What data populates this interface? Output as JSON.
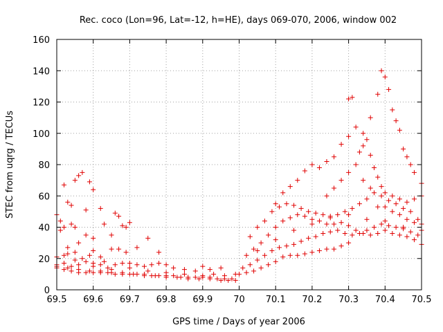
{
  "chart_data": {
    "type": "scatter",
    "title": "Rec. coco (Lon=96, Lat=-12, h=HE), days 069-070, 2006, window 002",
    "xlabel": "GPS time / Days of year 2006",
    "ylabel": "STEC from uqrg / TECUs",
    "xlim": [
      69.5,
      70.5
    ],
    "ylim": [
      0,
      160
    ],
    "xticks": [
      "69.5",
      "69.6",
      "69.7",
      "69.8",
      "69.9",
      "70",
      "70.1",
      "70.2",
      "70.3",
      "70.4",
      "70.5"
    ],
    "yticks": [
      "0",
      "20",
      "40",
      "60",
      "80",
      "100",
      "120",
      "140",
      "160"
    ],
    "grid": true,
    "marker": "+",
    "color": "#e00000",
    "series": [
      {
        "points": [
          [
            69.5,
            48
          ],
          [
            69.51,
            44
          ],
          [
            69.52,
            40
          ],
          [
            69.52,
            67
          ],
          [
            69.53,
            56
          ],
          [
            69.54,
            54
          ],
          [
            69.55,
            70
          ],
          [
            69.56,
            73
          ],
          [
            69.57,
            75
          ],
          [
            69.58,
            51
          ],
          [
            69.59,
            69
          ],
          [
            69.6,
            64
          ],
          [
            69.51,
            38
          ],
          [
            69.53,
            27
          ],
          [
            69.54,
            42
          ],
          [
            69.55,
            40
          ],
          [
            69.56,
            30
          ],
          [
            69.58,
            35
          ],
          [
            69.6,
            33
          ],
          [
            69.62,
            52
          ],
          [
            69.63,
            42
          ],
          [
            69.65,
            35
          ],
          [
            69.66,
            49
          ],
          [
            69.67,
            47
          ],
          [
            69.68,
            41
          ],
          [
            69.69,
            40
          ],
          [
            69.7,
            43
          ],
          [
            69.5,
            21
          ],
          [
            69.52,
            22
          ],
          [
            69.53,
            23
          ],
          [
            69.55,
            24
          ],
          [
            69.57,
            20
          ],
          [
            69.59,
            22
          ],
          [
            69.6,
            25
          ],
          [
            69.62,
            21
          ],
          [
            69.63,
            18
          ],
          [
            69.65,
            26
          ],
          [
            69.67,
            26
          ],
          [
            69.69,
            24
          ],
          [
            69.72,
            27
          ],
          [
            69.75,
            33
          ],
          [
            69.78,
            24
          ],
          [
            69.5,
            16
          ],
          [
            69.52,
            17
          ],
          [
            69.54,
            15
          ],
          [
            69.56,
            16
          ],
          [
            69.58,
            18
          ],
          [
            69.6,
            17
          ],
          [
            69.62,
            16
          ],
          [
            69.64,
            14
          ],
          [
            69.66,
            16
          ],
          [
            69.68,
            17
          ],
          [
            69.7,
            17
          ],
          [
            69.72,
            16
          ],
          [
            69.74,
            15
          ],
          [
            69.76,
            16
          ],
          [
            69.78,
            17
          ],
          [
            69.8,
            16
          ],
          [
            69.82,
            14
          ],
          [
            69.85,
            13
          ],
          [
            69.88,
            12
          ],
          [
            69.9,
            15
          ],
          [
            69.92,
            13
          ],
          [
            69.95,
            14
          ],
          [
            69.5,
            14
          ],
          [
            69.52,
            13
          ],
          [
            69.54,
            12
          ],
          [
            69.56,
            11
          ],
          [
            69.58,
            11
          ],
          [
            69.6,
            11
          ],
          [
            69.62,
            11
          ],
          [
            69.64,
            11
          ],
          [
            69.66,
            10
          ],
          [
            69.68,
            10
          ],
          [
            69.7,
            10
          ],
          [
            69.72,
            10
          ],
          [
            69.74,
            10
          ],
          [
            69.76,
            9
          ],
          [
            69.78,
            9
          ],
          [
            69.8,
            9
          ],
          [
            69.82,
            9
          ],
          [
            69.84,
            8
          ],
          [
            69.86,
            8
          ],
          [
            69.88,
            8
          ],
          [
            69.9,
            8
          ],
          [
            69.92,
            8
          ],
          [
            69.94,
            7
          ],
          [
            69.96,
            7
          ],
          [
            69.98,
            7
          ],
          [
            69.5,
            15
          ],
          [
            69.53,
            14
          ],
          [
            69.56,
            13
          ],
          [
            69.59,
            12
          ],
          [
            69.62,
            12
          ],
          [
            69.65,
            11
          ],
          [
            69.68,
            11
          ],
          [
            69.71,
            10
          ],
          [
            69.74,
            9
          ],
          [
            69.77,
            9
          ],
          [
            69.8,
            8
          ],
          [
            69.83,
            8
          ],
          [
            69.86,
            7
          ],
          [
            69.89,
            7
          ],
          [
            69.92,
            7
          ],
          [
            69.95,
            6
          ],
          [
            69.97,
            6
          ],
          [
            69.99,
            6
          ],
          [
            69.55,
            19
          ],
          [
            69.6,
            15
          ],
          [
            69.65,
            13
          ],
          [
            69.7,
            14
          ],
          [
            69.75,
            12
          ],
          [
            69.8,
            11
          ],
          [
            69.85,
            10
          ],
          [
            69.9,
            9
          ],
          [
            69.93,
            10
          ],
          [
            69.96,
            9
          ],
          [
            69.99,
            10
          ],
          [
            70.0,
            10
          ],
          [
            70.02,
            11
          ],
          [
            70.04,
            12
          ],
          [
            70.06,
            14
          ],
          [
            70.08,
            16
          ],
          [
            70.1,
            18
          ],
          [
            70.12,
            21
          ],
          [
            70.14,
            22
          ],
          [
            70.16,
            22
          ],
          [
            70.18,
            23
          ],
          [
            70.2,
            24
          ],
          [
            70.22,
            25
          ],
          [
            70.24,
            26
          ],
          [
            70.26,
            26
          ],
          [
            70.28,
            28
          ],
          [
            70.3,
            30
          ],
          [
            70.01,
            14
          ],
          [
            70.03,
            16
          ],
          [
            70.05,
            19
          ],
          [
            70.07,
            22
          ],
          [
            70.09,
            25
          ],
          [
            70.11,
            27
          ],
          [
            70.13,
            28
          ],
          [
            70.15,
            29
          ],
          [
            70.17,
            31
          ],
          [
            70.19,
            33
          ],
          [
            70.21,
            34
          ],
          [
            70.23,
            36
          ],
          [
            70.25,
            37
          ],
          [
            70.27,
            38
          ],
          [
            70.29,
            36
          ],
          [
            70.31,
            35
          ],
          [
            70.33,
            36
          ],
          [
            70.35,
            38
          ],
          [
            70.37,
            40
          ],
          [
            70.39,
            42
          ],
          [
            70.41,
            41
          ],
          [
            70.43,
            40
          ],
          [
            70.45,
            39
          ],
          [
            70.47,
            37
          ],
          [
            70.49,
            35
          ],
          [
            70.02,
            22
          ],
          [
            70.04,
            26
          ],
          [
            70.06,
            30
          ],
          [
            70.08,
            35
          ],
          [
            70.1,
            40
          ],
          [
            70.12,
            44
          ],
          [
            70.14,
            46
          ],
          [
            70.16,
            48
          ],
          [
            70.18,
            47
          ],
          [
            70.2,
            45
          ],
          [
            70.22,
            44
          ],
          [
            70.24,
            42
          ],
          [
            70.26,
            42
          ],
          [
            70.28,
            43
          ],
          [
            70.3,
            41
          ],
          [
            70.32,
            38
          ],
          [
            70.34,
            36
          ],
          [
            70.36,
            35
          ],
          [
            70.38,
            36
          ],
          [
            70.4,
            38
          ],
          [
            70.42,
            36
          ],
          [
            70.44,
            35
          ],
          [
            70.46,
            34
          ],
          [
            70.48,
            32
          ],
          [
            70.5,
            29
          ],
          [
            70.03,
            34
          ],
          [
            70.05,
            40
          ],
          [
            70.07,
            44
          ],
          [
            70.09,
            50
          ],
          [
            70.11,
            53
          ],
          [
            70.13,
            55
          ],
          [
            70.15,
            54
          ],
          [
            70.17,
            52
          ],
          [
            70.19,
            50
          ],
          [
            70.21,
            49
          ],
          [
            70.23,
            48
          ],
          [
            70.25,
            47
          ],
          [
            70.27,
            48
          ],
          [
            70.29,
            50
          ],
          [
            70.31,
            52
          ],
          [
            70.33,
            55
          ],
          [
            70.35,
            58
          ],
          [
            70.37,
            62
          ],
          [
            70.39,
            60
          ],
          [
            70.41,
            57
          ],
          [
            70.43,
            55
          ],
          [
            70.45,
            52
          ],
          [
            70.47,
            50
          ],
          [
            70.49,
            45
          ],
          [
            70.1,
            55
          ],
          [
            70.12,
            62
          ],
          [
            70.14,
            66
          ],
          [
            70.16,
            70
          ],
          [
            70.18,
            76
          ],
          [
            70.2,
            80
          ],
          [
            70.22,
            78
          ],
          [
            70.24,
            82
          ],
          [
            70.26,
            85
          ],
          [
            70.28,
            93
          ],
          [
            70.3,
            98
          ],
          [
            70.32,
            104
          ],
          [
            70.34,
            100
          ],
          [
            70.36,
            110
          ],
          [
            70.38,
            125
          ],
          [
            70.39,
            140
          ],
          [
            70.4,
            136
          ],
          [
            70.41,
            128
          ],
          [
            70.42,
            115
          ],
          [
            70.43,
            108
          ],
          [
            70.44,
            102
          ],
          [
            70.45,
            90
          ],
          [
            70.46,
            85
          ],
          [
            70.47,
            80
          ],
          [
            70.48,
            75
          ],
          [
            70.5,
            68
          ],
          [
            70.24,
            60
          ],
          [
            70.26,
            65
          ],
          [
            70.28,
            70
          ],
          [
            70.3,
            75
          ],
          [
            70.32,
            80
          ],
          [
            70.33,
            88
          ],
          [
            70.34,
            92
          ],
          [
            70.35,
            96
          ],
          [
            70.36,
            86
          ],
          [
            70.37,
            78
          ],
          [
            70.38,
            72
          ],
          [
            70.39,
            66
          ],
          [
            70.4,
            62
          ],
          [
            70.42,
            60
          ],
          [
            70.44,
            58
          ],
          [
            70.46,
            56
          ],
          [
            70.48,
            58
          ],
          [
            70.5,
            60
          ],
          [
            70.3,
            122
          ],
          [
            70.31,
            123
          ],
          [
            70.34,
            70
          ],
          [
            70.36,
            65
          ],
          [
            70.38,
            53
          ],
          [
            70.4,
            53
          ],
          [
            70.42,
            50
          ],
          [
            70.44,
            48
          ],
          [
            70.46,
            45
          ],
          [
            70.48,
            43
          ],
          [
            70.5,
            42
          ],
          [
            70.05,
            25
          ],
          [
            70.1,
            32
          ],
          [
            70.15,
            38
          ],
          [
            70.2,
            42
          ],
          [
            70.25,
            46
          ],
          [
            70.3,
            48
          ],
          [
            70.35,
            45
          ],
          [
            70.4,
            44
          ],
          [
            70.45,
            40
          ],
          [
            70.5,
            38
          ]
        ]
      }
    ]
  }
}
